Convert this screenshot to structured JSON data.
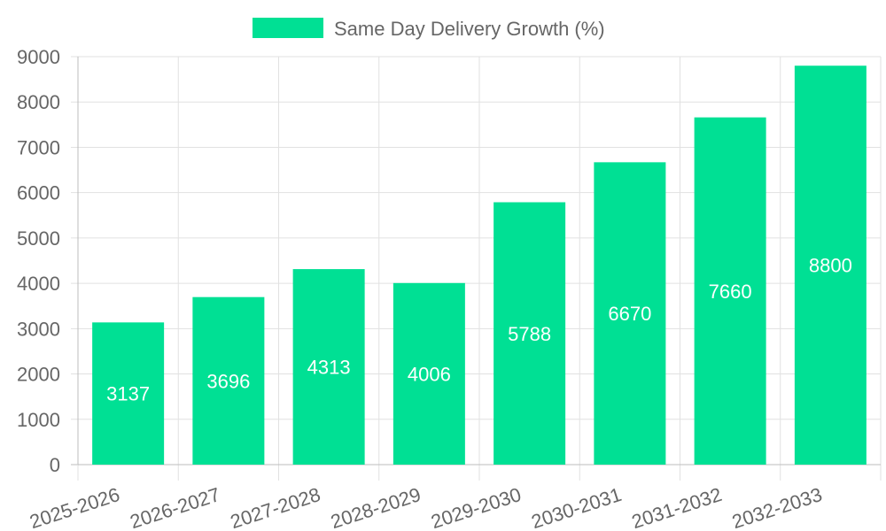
{
  "chart_data": {
    "type": "bar",
    "categories": [
      "2025-2026",
      "2026-2027",
      "2027-2028",
      "2028-2029",
      "2029-2030",
      "2030-2031",
      "2031-2032",
      "2032-2033"
    ],
    "series": [
      {
        "name": "Same Day Delivery Growth (%)",
        "values": [
          3137,
          3696,
          4313,
          4006,
          5788,
          6670,
          7660,
          8800
        ],
        "color": "#00e094"
      }
    ],
    "title": "",
    "xlabel": "",
    "ylabel": "",
    "ylim": [
      0,
      9000
    ],
    "yticks": [
      "0",
      "1000",
      "2000",
      "3000",
      "4000",
      "5000",
      "6000",
      "7000",
      "8000",
      "9000"
    ],
    "grid": true,
    "legend_position": "top-center",
    "data_labels": true,
    "x_tick_rotation": "slanted"
  }
}
